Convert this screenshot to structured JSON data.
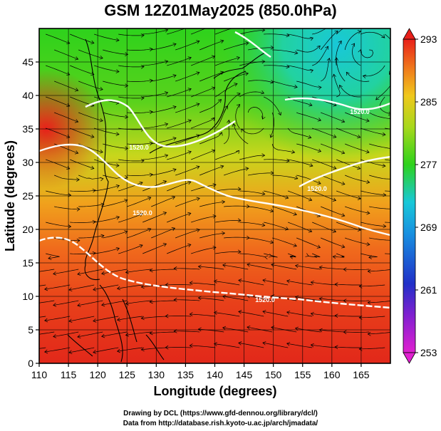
{
  "title": "GSM 12Z01May2025 (850.0hPa)",
  "xlabel": "Longitude (degrees)",
  "ylabel": "Latitude  (degrees)",
  "credits": [
    "Drawing by DCL (https://www.gfd-dennou.org/library/dcl/)",
    "Data from http://database.rish.kyoto-u.ac.jp/arch/jmadata/"
  ],
  "chart_data": {
    "type": "heatmap",
    "title": "GSM 12Z01May2025 (850.0hPa)",
    "xlabel": "Longitude (degrees)",
    "ylabel": "Latitude  (degrees)",
    "xlim": [
      110,
      170
    ],
    "ylim": [
      0,
      50
    ],
    "x_ticks": [
      110,
      115,
      120,
      125,
      130,
      135,
      140,
      145,
      150,
      155,
      160,
      165
    ],
    "y_ticks": [
      0,
      5,
      10,
      15,
      20,
      25,
      30,
      35,
      40,
      45
    ],
    "grid": true,
    "colorbar": {
      "min": 253,
      "max": 293,
      "ticks": [
        253,
        261,
        269,
        277,
        285,
        293
      ],
      "placement": "right"
    },
    "contour_labels": [
      "1520.0",
      "1520.0",
      "1520.0",
      "1520.0",
      "1520.0"
    ]
  },
  "colors": {
    "warm": "#e8201a",
    "orange": "#f08a1c",
    "yellow": "#e8d21c",
    "green": "#2ed21c",
    "cyan": "#18c8d8",
    "blue": "#1838c8",
    "magenta": "#d820c8",
    "contour": "#ffffff",
    "coast": "#000000"
  }
}
